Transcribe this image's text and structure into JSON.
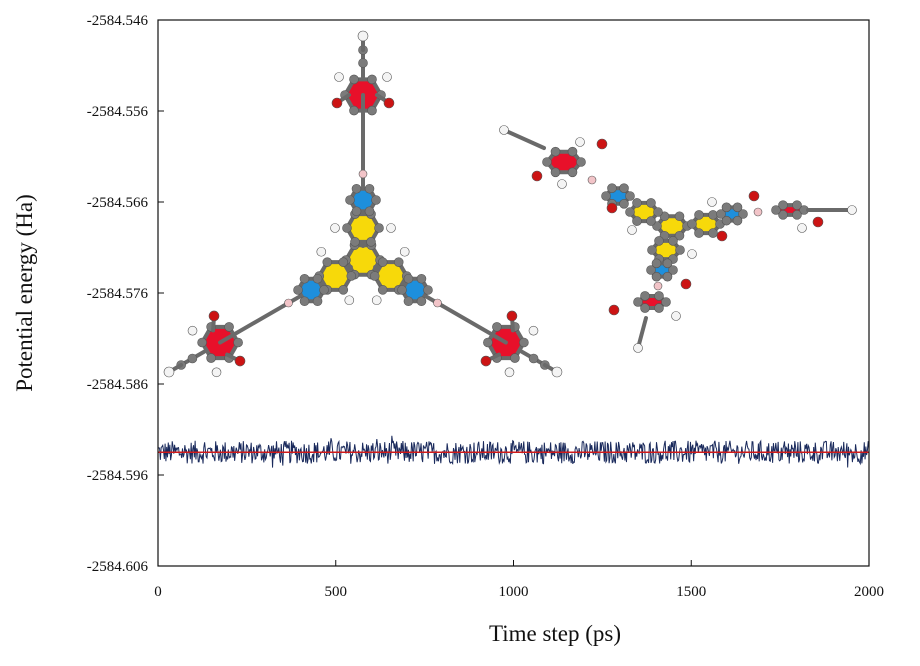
{
  "chart_data": {
    "type": "line",
    "title": "",
    "xlabel": "Time step (ps)",
    "ylabel": "Potential energy (Ha)",
    "xlim": [
      0,
      2000
    ],
    "ylim": [
      -2584.606,
      -2584.546
    ],
    "x_ticks": [
      0,
      500,
      1000,
      1500,
      2000
    ],
    "y_ticks": [
      -2584.546,
      -2584.556,
      -2584.566,
      -2584.576,
      -2584.586,
      -2584.596,
      -2584.606
    ],
    "x_tick_labels": [
      "0",
      "500",
      "1000",
      "1500",
      "2000"
    ],
    "y_tick_labels": [
      "-2584.546",
      "-2584.556",
      "-2584.566",
      "-2584.576",
      "-2584.586",
      "-2584.596",
      "-2584.606"
    ],
    "grid": false,
    "series": [
      {
        "type": "fluctuation",
        "color": "#1a2a5c",
        "mean": -2584.5935,
        "amplitude": 0.0015,
        "x_range": [
          0,
          2000
        ]
      },
      {
        "type": "average-line",
        "color": "#d01a1a",
        "x": [
          0,
          2000
        ],
        "y": [
          -2584.5935,
          -2584.5935
        ]
      }
    ],
    "insets": [
      {
        "kind": "molecule-image",
        "view": "top"
      },
      {
        "kind": "molecule-image",
        "view": "side"
      }
    ],
    "colors": {
      "carbon": "#7b7b7b",
      "hydrogen": "#f4f4f4",
      "oxygen": "#cc1414",
      "boron": "#f2c4c8",
      "ring_benzene": "#e8102a",
      "ring_core": "#f7d90a",
      "ring_boroxine": "#1e8fdc"
    }
  }
}
